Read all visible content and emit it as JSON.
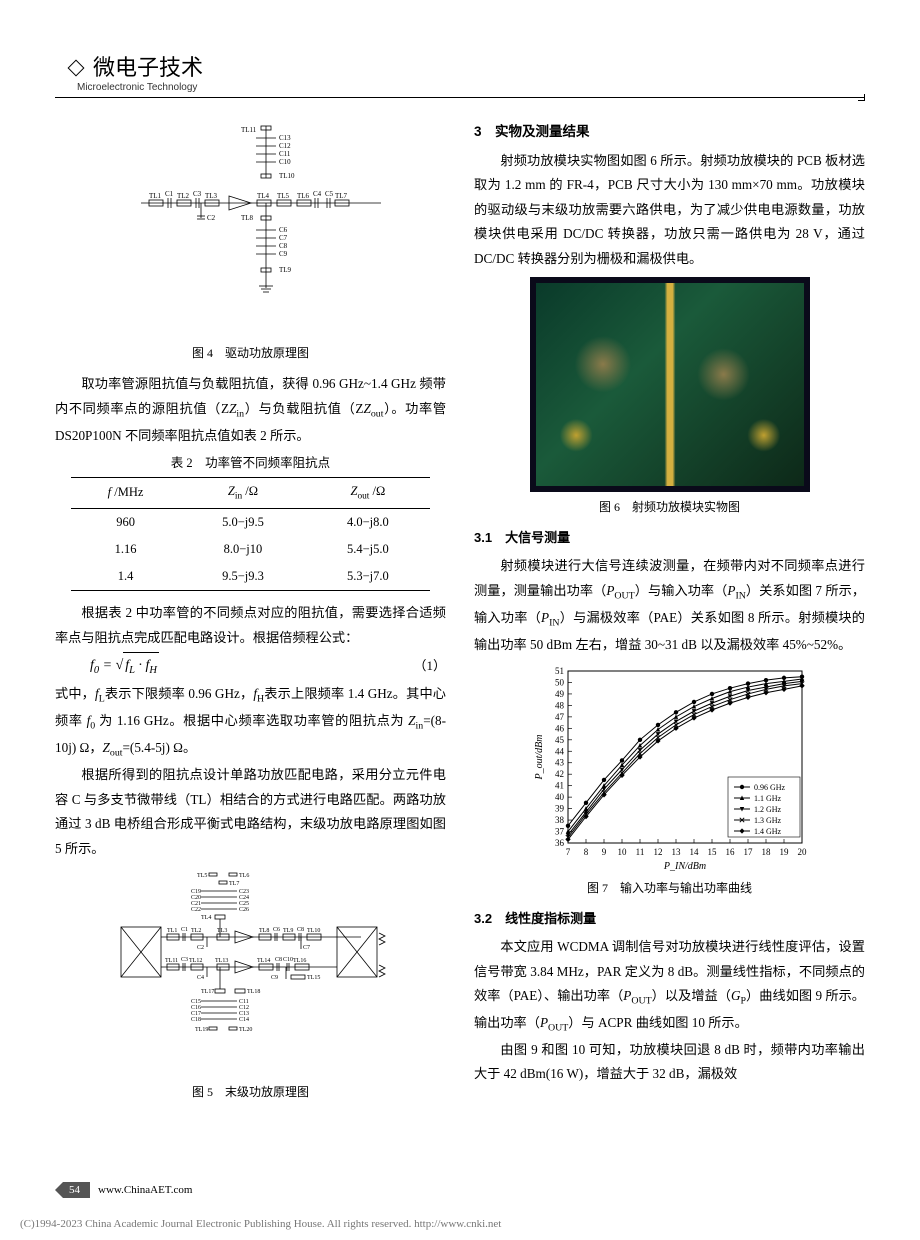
{
  "header": {
    "cn_title": "微电子技术",
    "en_title": "Microelectronic Technology"
  },
  "left_col": {
    "fig4_caption": "图 4　驱动功放原理图",
    "para1": "取功率管源阻抗值与负载阻抗值，获得 0.96 GHz~1.4 GHz 频带内不同频率点的源阻抗值（Z",
    "para1_sub1": "in",
    "para1_cont": "）与负载阻抗值（Z",
    "para1_sub2": "out",
    "para1_end": "）。功率管 DS20P100N 不同频率阻抗点值如表 2 所示。",
    "table2_title": "表 2　功率管不同频率阻抗点",
    "table2": {
      "columns": [
        "f /MHz",
        "Zin /Ω",
        "Zout /Ω"
      ],
      "rows": [
        [
          "960",
          "5.0−j9.5",
          "4.0−j8.0"
        ],
        [
          "1.16",
          "8.0−j10",
          "5.4−j5.0"
        ],
        [
          "1.4",
          "9.5−j9.3",
          "5.3−j7.0"
        ]
      ],
      "border_color": "#000000",
      "header_fontsize": 12.5,
      "cell_fontsize": 12.5
    },
    "para2": "根据表 2 中功率管的不同频点对应的阻抗值，需要选择合适频率点与阻抗点完成匹配电路设计。根据倍频程公式：",
    "formula": "f₀ = √(f_L · f_H)",
    "formula_num": "（1）",
    "para3": "式中，f_L表示下限频率 0.96 GHz，f_H表示上限频率 1.4 GHz。其中心频率 f₀ 为 1.16 GHz。根据中心频率选取功率管的阻抗点为 Z_in=(8-10j) Ω，Z_out=(5.4-5j) Ω。",
    "para4": "根据所得到的阻抗点设计单路功放匹配电路，采用分立元件电容 C 与多支节微带线（TL）相结合的方式进行电路匹配。两路功放通过 3 dB 电桥组合形成平衡式电路结构，末级功放电路原理图如图 5 所示。",
    "fig5_caption": "图 5　末级功放原理图",
    "fig4_schematic": {
      "type": "circuit-schematic",
      "labels": [
        "TL11",
        "C13",
        "C12",
        "C11",
        "C10",
        "TL10",
        "TL1",
        "C1",
        "TL2",
        "C3",
        "TL3",
        "C2",
        "TL4",
        "TL5",
        "TL6",
        "TL7",
        "C4",
        "C5",
        "TL8",
        "C6",
        "C7",
        "C8",
        "C9",
        "TL9"
      ],
      "line_color": "#000000",
      "line_width": 0.8
    },
    "fig5_schematic": {
      "type": "circuit-schematic",
      "labels": [
        "TL5",
        "TL6",
        "TL7",
        "C19",
        "C23",
        "C20",
        "C24",
        "C21",
        "C25",
        "C22",
        "C26",
        "TL4",
        "TL1",
        "C1",
        "TL2",
        "C2",
        "TL3",
        "TL8",
        "C6",
        "TL9",
        "C8",
        "TL10",
        "C7",
        "TL11",
        "C3",
        "TL12",
        "C4",
        "TL13",
        "TL14",
        "TL16",
        "C9",
        "C10",
        "TL15",
        "TL17",
        "TL18",
        "C15",
        "C11",
        "C16",
        "C12",
        "C17",
        "C13",
        "C18",
        "C14",
        "TL19",
        "TL20"
      ],
      "line_color": "#000000",
      "line_width": 0.8
    }
  },
  "right_col": {
    "sec3_title": "3　实物及测量结果",
    "para1": "射频功放模块实物图如图 6 所示。射频功放模块的 PCB 板材选取为 1.2 mm 的 FR-4，PCB 尺寸大小为 130 mm×70 mm。功放模块的驱动级与末级功放需要六路供电，为了减少供电电源数量，功放模块供电采用 DC/DC 转换器，功放只需一路供电为 28 V，通过 DC/DC 转换器分别为栅极和漏极供电。",
    "fig6_caption": "图 6　射频功放模块实物图",
    "sec31_title": "3.1　大信号测量",
    "para2": "射频模块进行大信号连续波测量，在频带内对不同频率点进行测量，测量输出功率（P_OUT）与输入功率（P_IN）关系如图 7 所示，输入功率（P_IN）与漏极效率（PAE）关系如图 8 所示。射频模块的输出功率 50 dBm 左右，增益 30~31 dB 以及漏极效率 45%~52%。",
    "fig7": {
      "type": "line",
      "xlabel": "P_IN/dBm",
      "ylabel": "P_out/dBm",
      "xlim": [
        7,
        20
      ],
      "ylim": [
        36,
        51
      ],
      "xtick_step": 1,
      "ytick_step": 1,
      "series": [
        {
          "name": "0.96 GHz",
          "marker": "circle",
          "color": "#000000",
          "x": [
            7,
            8,
            9,
            10,
            11,
            12,
            13,
            14,
            15,
            16,
            17,
            18,
            19,
            20
          ],
          "y": [
            37.5,
            39.5,
            41.5,
            43.2,
            45.0,
            46.3,
            47.4,
            48.3,
            49.0,
            49.5,
            49.9,
            50.2,
            50.4,
            50.5
          ]
        },
        {
          "name": "1.1 GHz",
          "marker": "triangle",
          "color": "#000000",
          "x": [
            7,
            8,
            9,
            10,
            11,
            12,
            13,
            14,
            15,
            16,
            17,
            18,
            19,
            20
          ],
          "y": [
            37.0,
            39.0,
            41.0,
            42.8,
            44.5,
            45.9,
            47.0,
            47.9,
            48.6,
            49.2,
            49.6,
            49.9,
            50.1,
            50.3
          ]
        },
        {
          "name": "1.2 GHz",
          "marker": "down-triangle",
          "color": "#000000",
          "x": [
            7,
            8,
            9,
            10,
            11,
            12,
            13,
            14,
            15,
            16,
            17,
            18,
            19,
            20
          ],
          "y": [
            36.7,
            38.7,
            40.7,
            42.4,
            44.1,
            45.5,
            46.6,
            47.5,
            48.2,
            48.8,
            49.3,
            49.6,
            49.9,
            50.1
          ]
        },
        {
          "name": "1.3 GHz",
          "marker": "x",
          "color": "#000000",
          "x": [
            7,
            8,
            9,
            10,
            11,
            12,
            13,
            14,
            15,
            16,
            17,
            18,
            19,
            20
          ],
          "y": [
            36.5,
            38.5,
            40.4,
            42.1,
            43.8,
            45.2,
            46.3,
            47.2,
            47.9,
            48.5,
            49.0,
            49.4,
            49.7,
            49.9
          ]
        },
        {
          "name": "1.4 GHz",
          "marker": "diamond",
          "color": "#000000",
          "x": [
            7,
            8,
            9,
            10,
            11,
            12,
            13,
            14,
            15,
            16,
            17,
            18,
            19,
            20
          ],
          "y": [
            36.3,
            38.3,
            40.2,
            41.9,
            43.5,
            44.9,
            46.0,
            46.9,
            47.6,
            48.2,
            48.7,
            49.1,
            49.4,
            49.7
          ]
        }
      ],
      "legend_pos": "lower-right",
      "line_width": 1.0,
      "marker_size": 3,
      "background_color": "#ffffff",
      "border_color": "#000000",
      "font_size": 10
    },
    "fig7_caption": "图 7　输入功率与输出功率曲线",
    "sec32_title": "3.2　线性度指标测量",
    "para3": "本文应用 WCDMA 调制信号对功放模块进行线性度评估，设置信号带宽 3.84 MHz，PAR 定义为 8 dB。测量线性指标，不同频点的效率（PAE）、输出功率（P_OUT）以及增益（G_P）曲线如图 9 所示。输出功率（P_OUT）与 ACPR 曲线如图 10 所示。",
    "para4": "由图 9 和图 10 可知，功放模块回退 8 dB 时，频带内功率输出大于 42 dBm(16 W)，增益大于 32 dB，漏极效"
  },
  "footer": {
    "page_number": "54",
    "url": "www.ChinaAET.com",
    "copyright": "(C)1994-2023 China Academic Journal Electronic Publishing House. All rights reserved.    http://www.cnki.net"
  }
}
